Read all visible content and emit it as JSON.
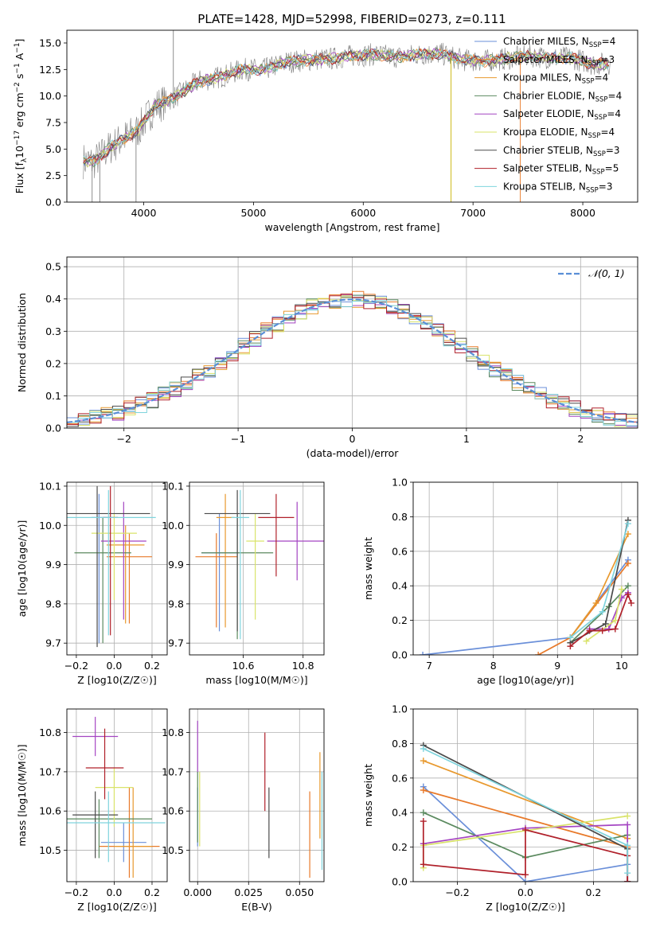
{
  "figure_title": "PLATE=1428, MJD=52998, FIBERID=0273, z=0.111",
  "models": [
    {
      "name": "Chabrier MILES",
      "nssp": "4",
      "color": "#6a8fd9"
    },
    {
      "name": "Salpeter MILES",
      "nssp": "3",
      "color": "#e87a2a"
    },
    {
      "name": "Kroupa MILES",
      "nssp": "4",
      "color": "#e8992e"
    },
    {
      "name": "Chabrier ELODIE",
      "nssp": "4",
      "color": "#5b8a5f"
    },
    {
      "name": "Salpeter ELODIE",
      "nssp": "4",
      "color": "#a445c2"
    },
    {
      "name": "Kroupa ELODIE",
      "nssp": "4",
      "color": "#d9e36a"
    },
    {
      "name": "Chabrier STELIB",
      "nssp": "3",
      "color": "#4a4a4a"
    },
    {
      "name": "Salpeter STELIB",
      "nssp": "5",
      "color": "#b0202a"
    },
    {
      "name": "Kroupa STELIB",
      "nssp": "3",
      "color": "#7fd4dd"
    }
  ],
  "chart_data": [
    {
      "type": "line",
      "xlabel": "wavelength [Angstrom, rest frame]",
      "ylabel_html": "Flux [f_λ 10^-17 erg cm^-2 s^-1 A^-1]",
      "xlim": [
        3300,
        8500
      ],
      "ylim": [
        0,
        16.2
      ],
      "xticks": [
        4000,
        5000,
        6000,
        7000,
        8000
      ],
      "yticks": [
        "0.0",
        "2.5",
        "5.0",
        "7.5",
        "10.0",
        "12.5",
        "15.0"
      ],
      "spectrum_shape": {
        "x": [
          3450,
          3550,
          3700,
          3850,
          3950,
          4100,
          4300,
          4500,
          4700,
          4900,
          5100,
          5300,
          5500,
          5700,
          5900,
          6100,
          6300,
          6500,
          6700,
          6900,
          7100,
          7300,
          7500,
          7700,
          7900,
          8100,
          8250
        ],
        "y": [
          3.9,
          3.8,
          5.2,
          6.2,
          6.8,
          9.0,
          10.0,
          11.4,
          11.8,
          12.5,
          12.5,
          13.2,
          13.4,
          13.5,
          13.8,
          13.9,
          13.7,
          13.9,
          14.0,
          13.4,
          13.3,
          13.5,
          13.8,
          13.6,
          13.6,
          13.0,
          13.1
        ]
      }
    },
    {
      "type": "step",
      "xlabel": "(data-model)/error",
      "ylabel": "Normed distribution",
      "xlim": [
        -2.5,
        2.5
      ],
      "ylim": [
        0,
        0.53
      ],
      "xticks": [
        "−2",
        "−1",
        "0",
        "1",
        "2"
      ],
      "yticks": [
        "0.0",
        "0.1",
        "0.2",
        "0.3",
        "0.4",
        "0.5"
      ],
      "legend": "𝒩(0, 1)",
      "reference_curve": "normal(0,1)"
    },
    {
      "type": "errorbar",
      "xlabel": "Z [log10(Z/Z☉)]",
      "ylabel": "age  [log10(age/yr)]",
      "xlim": [
        -0.25,
        0.28
      ],
      "ylim": [
        9.67,
        10.11
      ],
      "xticks": [
        "−0.2",
        "0.0",
        "0.2"
      ],
      "yticks": [
        "9.7",
        "9.8",
        "9.9",
        "10.0",
        "10.1"
      ],
      "points": [
        {
          "x": -0.08,
          "xerr": 0.04,
          "y": 10.02,
          "yerr": [
            0.32,
            0.06
          ]
        },
        {
          "x": 0.08,
          "xerr": 0.12,
          "y": 9.92,
          "yerr": [
            0.17,
            0.06
          ]
        },
        {
          "x": 0.06,
          "xerr": 0.1,
          "y": 9.95,
          "yerr": [
            0.2,
            0.05
          ]
        },
        {
          "x": -0.06,
          "xerr": 0.15,
          "y": 9.93,
          "yerr": [
            0.23,
            0.09
          ]
        },
        {
          "x": 0.05,
          "xerr": 0.12,
          "y": 9.96,
          "yerr": [
            0.2,
            0.1
          ]
        },
        {
          "x": -0.0,
          "xerr": 0.12,
          "y": 9.98,
          "yerr": [
            0.17,
            0.05
          ]
        },
        {
          "x": -0.09,
          "xerr": 0.28,
          "y": 10.03,
          "yerr": [
            0.34,
            0.07
          ]
        },
        {
          "x": -0.02,
          "xerr": 0.04,
          "y": 10.02,
          "yerr": [
            0.3,
            0.08
          ]
        },
        {
          "x": -0.03,
          "xerr": 0.25,
          "y": 10.02,
          "yerr": [
            0.3,
            0.07
          ]
        }
      ]
    },
    {
      "type": "errorbar",
      "xlabel": "mass [log10(M/M☉)]",
      "ylabel": "",
      "xlim": [
        10.42,
        10.87
      ],
      "ylim": [
        9.67,
        10.11
      ],
      "xticks": [
        "10.6",
        "10.8"
      ],
      "yticks": [
        "9.7",
        "9.8",
        "9.9",
        "10.0",
        "10.1"
      ],
      "points": [
        {
          "x": 10.52,
          "xerr": 0.06,
          "y": 9.93,
          "yerr": [
            0.2,
            0.1
          ]
        },
        {
          "x": 10.51,
          "xerr": 0.07,
          "y": 9.92,
          "yerr": [
            0.18,
            0.06
          ]
        },
        {
          "x": 10.54,
          "xerr": 0.03,
          "y": 10.02,
          "yerr": [
            0.28,
            0.06
          ]
        },
        {
          "x": 10.58,
          "xerr": 0.12,
          "y": 9.93,
          "yerr": [
            0.22,
            0.1
          ]
        },
        {
          "x": 10.78,
          "xerr": 0.1,
          "y": 9.96,
          "yerr": [
            0.1,
            0.1
          ]
        },
        {
          "x": 10.64,
          "xerr": 0.03,
          "y": 9.96,
          "yerr": [
            0.2,
            0.07
          ]
        },
        {
          "x": 10.58,
          "xerr": 0.11,
          "y": 10.03,
          "yerr": [
            0.3,
            0.06
          ]
        },
        {
          "x": 10.71,
          "xerr": 0.06,
          "y": 10.02,
          "yerr": [
            0.15,
            0.06
          ]
        },
        {
          "x": 10.59,
          "xerr": 0.03,
          "y": 10.02,
          "yerr": [
            0.31,
            0.07
          ]
        }
      ]
    },
    {
      "type": "line",
      "xlabel": "age  [log10(age/yr)]",
      "ylabel": "mass weight",
      "xlim": [
        6.75,
        10.25
      ],
      "ylim": [
        0,
        1.0
      ],
      "xticks": [
        "7",
        "8",
        "9",
        "10"
      ],
      "yticks": [
        "0.0",
        "0.2",
        "0.4",
        "0.6",
        "0.8",
        "1.0"
      ],
      "series": [
        {
          "x": [
            6.9,
            9.2,
            10.1
          ],
          "y": [
            0.0,
            0.1,
            0.55
          ]
        },
        {
          "x": [
            8.7,
            9.2,
            10.1
          ],
          "y": [
            0.0,
            0.1,
            0.53
          ]
        },
        {
          "x": [
            9.2,
            9.6,
            10.1
          ],
          "y": [
            0.1,
            0.3,
            0.7
          ]
        },
        {
          "x": [
            9.2,
            9.8,
            10.1
          ],
          "y": [
            0.07,
            0.28,
            0.4
          ]
        },
        {
          "x": [
            9.5,
            9.8,
            10.0,
            10.1
          ],
          "y": [
            0.15,
            0.15,
            0.33,
            0.36
          ]
        },
        {
          "x": [
            9.45,
            9.9,
            10.0
          ],
          "y": [
            0.08,
            0.2,
            0.38
          ]
        },
        {
          "x": [
            9.2,
            9.75,
            10.1
          ],
          "y": [
            0.07,
            0.18,
            0.78
          ]
        },
        {
          "x": [
            9.2,
            9.5,
            9.7,
            9.9,
            10.1,
            10.15
          ],
          "y": [
            0.05,
            0.14,
            0.14,
            0.15,
            0.35,
            0.3
          ]
        },
        {
          "x": [
            9.2,
            9.7,
            10.1
          ],
          "y": [
            0.1,
            0.25,
            0.76
          ]
        }
      ]
    },
    {
      "type": "errorbar",
      "xlabel": "Z [log10(Z/Z☉)]",
      "ylabel": "mass [log10(M/M☉)]",
      "xlim": [
        -0.25,
        0.28
      ],
      "ylim": [
        10.42,
        10.86
      ],
      "xticks": [
        "−0.2",
        "0.0",
        "0.2"
      ],
      "yticks": [
        "10.5",
        "10.6",
        "10.7",
        "10.8"
      ],
      "points": [
        {
          "x": 0.05,
          "xerr": 0.12,
          "y": 10.52,
          "yerr": [
            0.05,
            0.05
          ]
        },
        {
          "x": 0.08,
          "xerr": 0.16,
          "y": 10.51,
          "yerr": [
            0.08,
            0.15
          ]
        },
        {
          "x": 0.1,
          "xerr": 0.1,
          "y": 10.51,
          "yerr": [
            0.08,
            0.15
          ]
        },
        {
          "x": -0.08,
          "xerr": 0.28,
          "y": 10.58,
          "yerr": [
            0.1,
            0.05
          ]
        },
        {
          "x": -0.1,
          "xerr": 0.12,
          "y": 10.79,
          "yerr": [
            0.05,
            0.05
          ]
        },
        {
          "x": -0.0,
          "xerr": 0.1,
          "y": 10.66,
          "yerr": [
            0.1,
            0.05
          ]
        },
        {
          "x": -0.1,
          "xerr": 0.12,
          "y": 10.59,
          "yerr": [
            0.11,
            0.06
          ]
        },
        {
          "x": -0.05,
          "xerr": 0.1,
          "y": 10.71,
          "yerr": [
            0.08,
            0.1
          ]
        },
        {
          "x": -0.03,
          "xerr": 0.3,
          "y": 10.57,
          "yerr": [
            0.1,
            0.08
          ]
        }
      ]
    },
    {
      "type": "errorbar",
      "xlabel": "E(B-V)",
      "ylabel": "",
      "xlim": [
        -0.004,
        0.062
      ],
      "ylim": [
        10.42,
        10.86
      ],
      "xticks": [
        "0.000",
        "0.025",
        "0.050"
      ],
      "yticks": [
        "10.5",
        "10.6",
        "10.7",
        "10.8"
      ],
      "points": [
        {
          "x": 0.0,
          "y": 10.6,
          "yerr": [
            0.09,
            0.06
          ]
        },
        {
          "x": 0.055,
          "y": 10.55,
          "yerr": [
            0.12,
            0.1
          ]
        },
        {
          "x": 0.06,
          "y": 10.6,
          "yerr": [
            0.07,
            0.15
          ]
        },
        {
          "x": 0.0,
          "y": 10.62,
          "yerr": [
            0.1,
            0.08
          ]
        },
        {
          "x": 0.0,
          "y": 10.75,
          "yerr": [
            0.05,
            0.08
          ]
        },
        {
          "x": 0.001,
          "y": 10.6,
          "yerr": [
            0.09,
            0.1
          ]
        },
        {
          "x": 0.035,
          "y": 10.56,
          "yerr": [
            0.08,
            0.1
          ]
        },
        {
          "x": 0.033,
          "y": 10.7,
          "yerr": [
            0.1,
            0.1
          ]
        },
        {
          "x": 0.061,
          "y": 10.55,
          "yerr": [
            0.1,
            0.15
          ]
        }
      ]
    },
    {
      "type": "line",
      "xlabel": "Z [log10(Z/Z☉)]",
      "ylabel": "mass weight",
      "xlim": [
        -0.33,
        0.33
      ],
      "ylim": [
        0,
        1.0
      ],
      "xticks": [
        "−0.2",
        "0.0",
        "0.2"
      ],
      "yticks": [
        "0.0",
        "0.2",
        "0.4",
        "0.6",
        "0.8",
        "1.0"
      ],
      "series": [
        {
          "x": [
            -0.3,
            0.0,
            0.3
          ],
          "y": [
            0.55,
            0.0,
            0.1
          ]
        },
        {
          "x": [
            -0.3,
            0.3,
            0.3
          ],
          "y": [
            0.53,
            0.2,
            0.0
          ]
        },
        {
          "x": [
            -0.3,
            0.3
          ],
          "y": [
            0.7,
            0.25
          ]
        },
        {
          "x": [
            -0.3,
            0.0,
            0.3
          ],
          "y": [
            0.4,
            0.14,
            0.27
          ]
        },
        {
          "x": [
            -0.3,
            0.0,
            0.3,
            0.3
          ],
          "y": [
            0.22,
            0.31,
            0.33,
            0.0
          ]
        },
        {
          "x": [
            -0.3,
            -0.3,
            0.3
          ],
          "y": [
            0.08,
            0.21,
            0.38
          ]
        },
        {
          "x": [
            -0.3,
            0.3,
            0.3
          ],
          "y": [
            0.79,
            0.19,
            0.0
          ]
        },
        {
          "x": [
            -0.3,
            -0.3,
            0.0,
            0.0,
            0.3,
            0.3
          ],
          "y": [
            0.35,
            0.1,
            0.04,
            0.3,
            0.15,
            0.0
          ]
        },
        {
          "x": [
            -0.3,
            0.3,
            0.3
          ],
          "y": [
            0.77,
            0.21,
            0.05
          ]
        }
      ]
    }
  ]
}
